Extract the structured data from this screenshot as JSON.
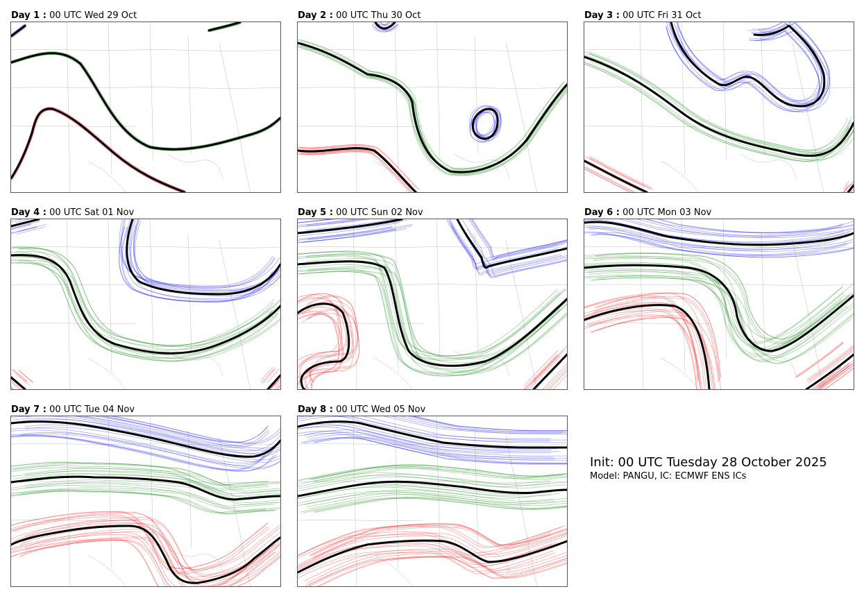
{
  "panels": [
    {
      "day": "Day 1 :",
      "time": "00 UTC Wed 29 Oct"
    },
    {
      "day": "Day 2 :",
      "time": "00 UTC Thu 30 Oct"
    },
    {
      "day": "Day 3 :",
      "time": "00 UTC Fri 31 Oct"
    },
    {
      "day": "Day 4 :",
      "time": "00 UTC Sat 01 Nov"
    },
    {
      "day": "Day 5 :",
      "time": "00 UTC Sun 02 Nov"
    },
    {
      "day": "Day 6 :",
      "time": "00 UTC Mon 03 Nov"
    },
    {
      "day": "Day 7 :",
      "time": "00 UTC Tue 04 Nov"
    },
    {
      "day": "Day 8 :",
      "time": "00 UTC Wed 05 Nov"
    }
  ],
  "info": {
    "init": "Init: 00 UTC Tuesday 28 October 2025",
    "model": "Model: PANGU, IC: ECMWF ENS ICs"
  },
  "colors": {
    "blue": "#0000ff",
    "green": "#008000",
    "red": "#ff0000",
    "mean": "#000000",
    "border": "#888888"
  }
}
